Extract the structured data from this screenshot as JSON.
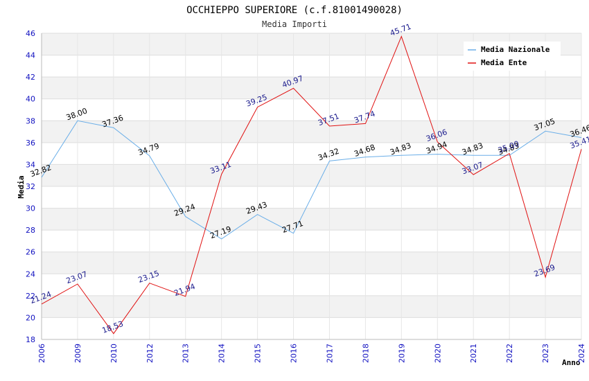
{
  "chart_data": {
    "type": "line",
    "title": "OCCHIEPPO SUPERIORE (c.f.81001490028)",
    "subtitle": "Media Importi",
    "xlabel": "Anno",
    "ylabel": "Media",
    "categories": [
      "2006",
      "2009",
      "2010",
      "2012",
      "2013",
      "2014",
      "2015",
      "2016",
      "2017",
      "2018",
      "2019",
      "2020",
      "2021",
      "2022",
      "2023",
      "2024"
    ],
    "ylim": [
      18,
      46
    ],
    "yticks": [
      "18",
      "20",
      "22",
      "24",
      "26",
      "28",
      "30",
      "32",
      "34",
      "36",
      "38",
      "40",
      "42",
      "44",
      "46"
    ],
    "legend_position": "top-right",
    "series": [
      {
        "name": "Media Nazionale",
        "color": "#6aaee8",
        "values": [
          32.82,
          38.0,
          37.36,
          34.79,
          29.24,
          27.19,
          29.43,
          27.71,
          34.32,
          34.68,
          34.83,
          34.94,
          34.83,
          34.83,
          37.05,
          36.46
        ],
        "labels": [
          "32.82",
          "38.00",
          "37.36",
          "34.79",
          "29.24",
          "27.19",
          "29.43",
          "27.71",
          "34.32",
          "34.68",
          "34.83",
          "34.94",
          "34.83",
          "34.83",
          "37.05",
          "36.46"
        ]
      },
      {
        "name": "Media Ente",
        "color": "#e01010",
        "values": [
          21.24,
          23.07,
          18.53,
          23.15,
          21.94,
          33.11,
          39.25,
          40.97,
          37.51,
          37.74,
          45.71,
          36.06,
          33.07,
          35.0,
          23.69,
          35.41
        ],
        "labels": [
          "21.24",
          "23.07",
          "18.53",
          "23.15",
          "21.94",
          "33.11",
          "39.25",
          "40.97",
          "37.51",
          "37.74",
          "45.71",
          "36.06",
          "33.07",
          "35.00",
          "23.69",
          "35.41"
        ]
      }
    ]
  }
}
